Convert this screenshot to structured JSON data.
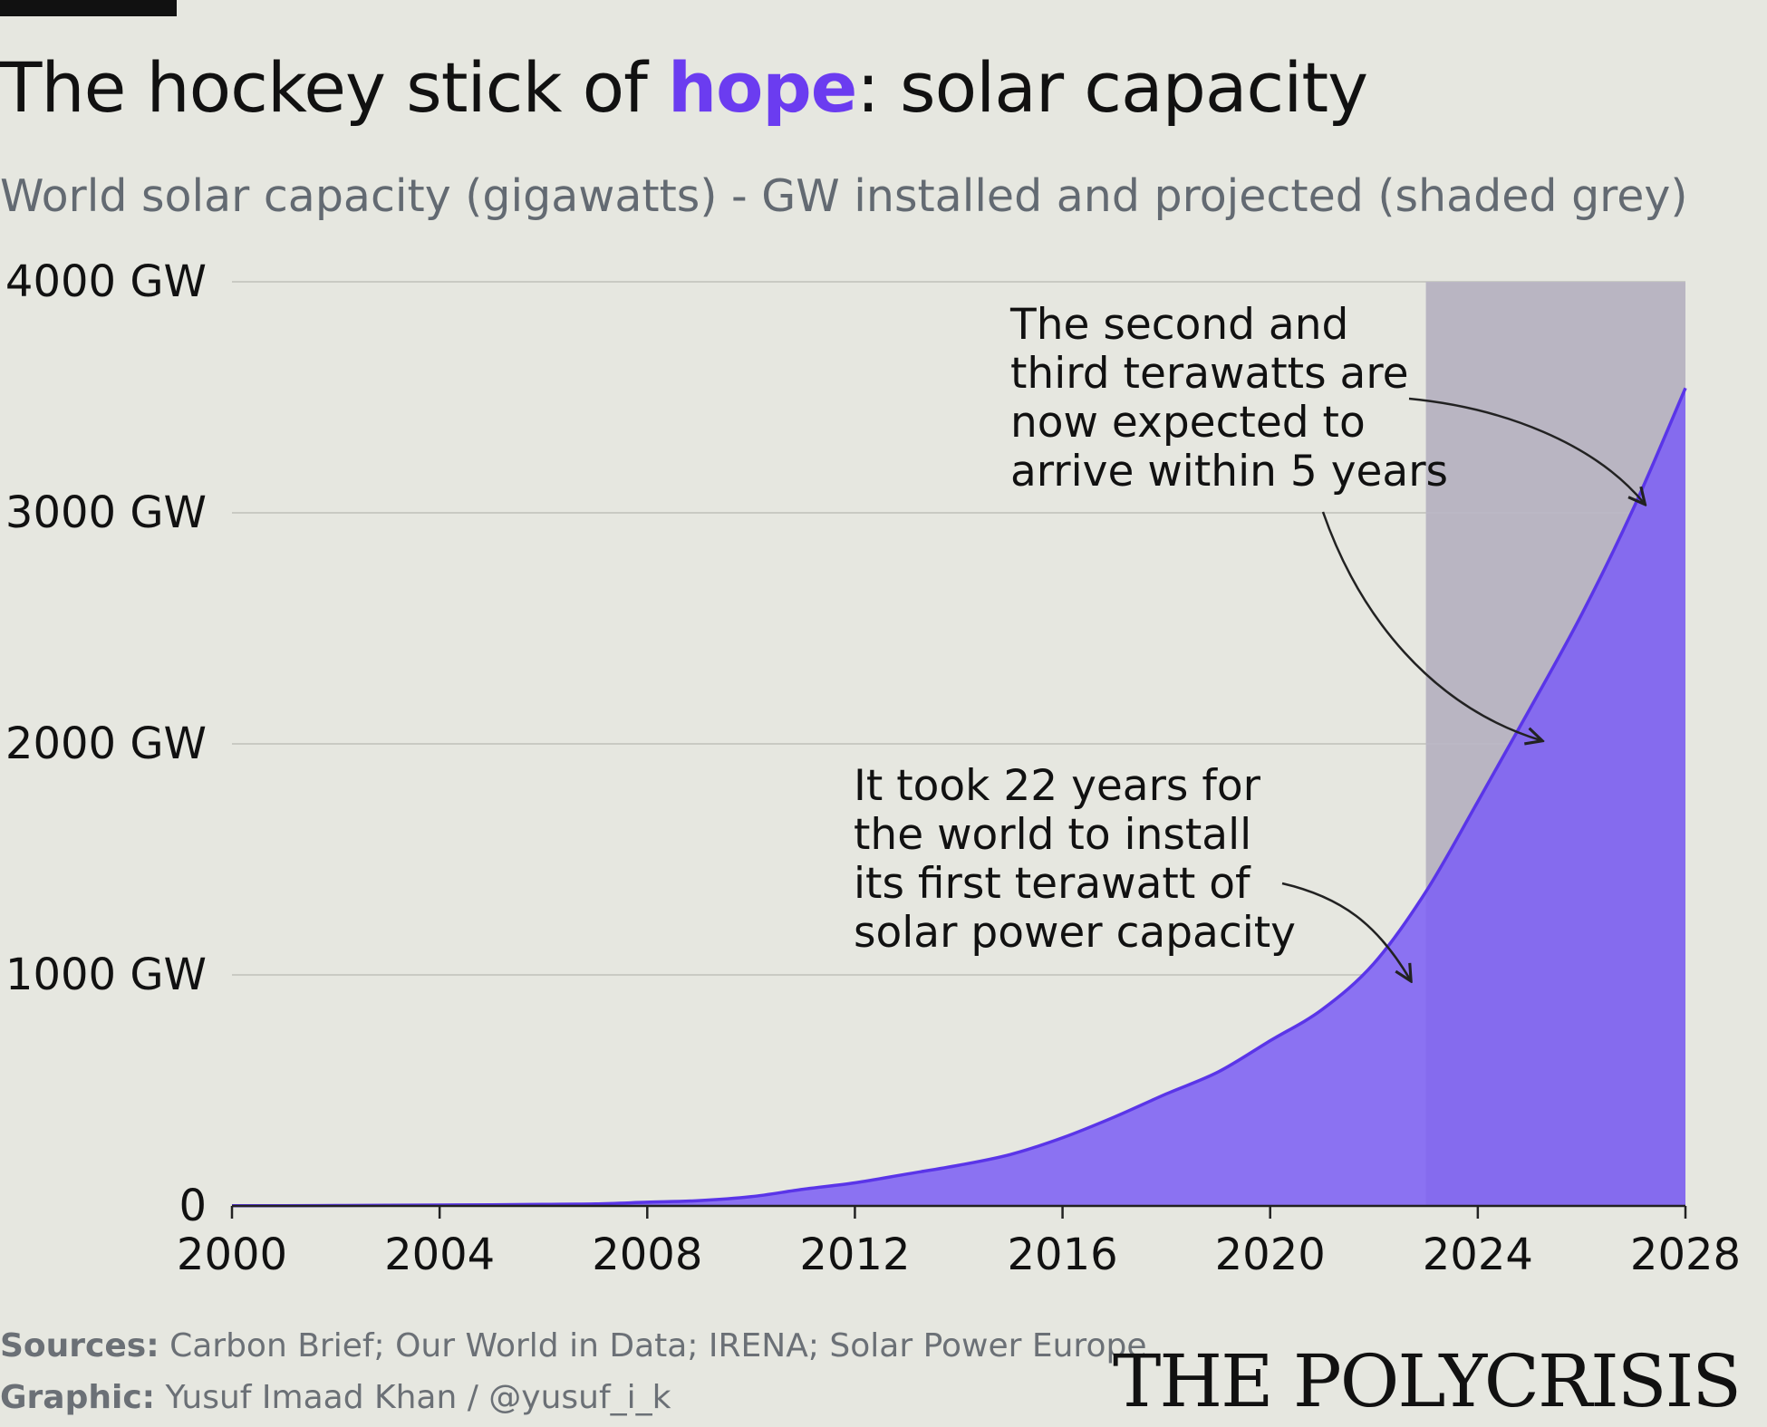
{
  "header": {
    "title_pre": "The hockey stick of ",
    "title_highlight": "hope",
    "title_post": ": solar capacity",
    "subtitle": "World solar capacity (gigawatts) - GW installed and projected (shaded grey)"
  },
  "footer": {
    "sources_label": "Sources:",
    "sources_text": " Carbon Brief; Our World in Data; IRENA; Solar Power Europe",
    "graphic_label": "Graphic:",
    "graphic_text": " Yusuf Imaad Khan / @yusuf_i_k",
    "brand": "THE POLYCRISIS"
  },
  "colors": {
    "background": "#e6e7e0",
    "area_fill": "#8b72f2",
    "line": "#5a35e8",
    "highlight": "#6b3cf0",
    "projection_shade": "#c6c7c0",
    "gridline": "#c9cac3"
  },
  "chart_data": {
    "type": "area",
    "title": "The hockey stick of hope: solar capacity",
    "subtitle": "World solar capacity (gigawatts) - GW installed and projected (shaded grey)",
    "x": [
      2000,
      2001,
      2002,
      2003,
      2004,
      2005,
      2006,
      2007,
      2008,
      2009,
      2010,
      2011,
      2012,
      2013,
      2014,
      2015,
      2016,
      2017,
      2018,
      2019,
      2020,
      2021,
      2022,
      2023,
      2024,
      2025,
      2026,
      2027,
      2028
    ],
    "series": [
      {
        "values": [
          1,
          1,
          2,
          3,
          4,
          5,
          7,
          9,
          16,
          23,
          40,
          72,
          100,
          138,
          176,
          223,
          295,
          385,
          485,
          580,
          715,
          850,
          1050,
          1360,
          1750,
          2150,
          2560,
          3020,
          3540
        ]
      }
    ],
    "xlim": [
      2000,
      2028
    ],
    "ylim": [
      0,
      4000
    ],
    "x_ticks": [
      2000,
      2004,
      2008,
      2012,
      2016,
      2020,
      2024,
      2028
    ],
    "x_tick_labels": [
      "2000",
      "2004",
      "2008",
      "2012",
      "2016",
      "2020",
      "2024",
      "2028"
    ],
    "y_ticks": [
      0,
      1000,
      2000,
      3000,
      4000
    ],
    "y_tick_labels": [
      "0",
      "1000 GW",
      "2000 GW",
      "3000 GW",
      "4000 GW"
    ],
    "projection_shade": {
      "from": 2023,
      "to": 2028
    },
    "grid": "horizontal",
    "annotations": [
      {
        "lines": [
          "The second and",
          "third terawatts are",
          "now expected to",
          "arrive within 5 years"
        ],
        "arrows_to": [
          [
            2027.2,
            3020
          ],
          [
            2025.2,
            2030
          ]
        ]
      },
      {
        "lines": [
          "It took 22 years for",
          "the world to install",
          "its first terawatt of",
          "solar power capacity"
        ],
        "arrows_to": [
          [
            2022.7,
            1020
          ]
        ]
      }
    ]
  }
}
